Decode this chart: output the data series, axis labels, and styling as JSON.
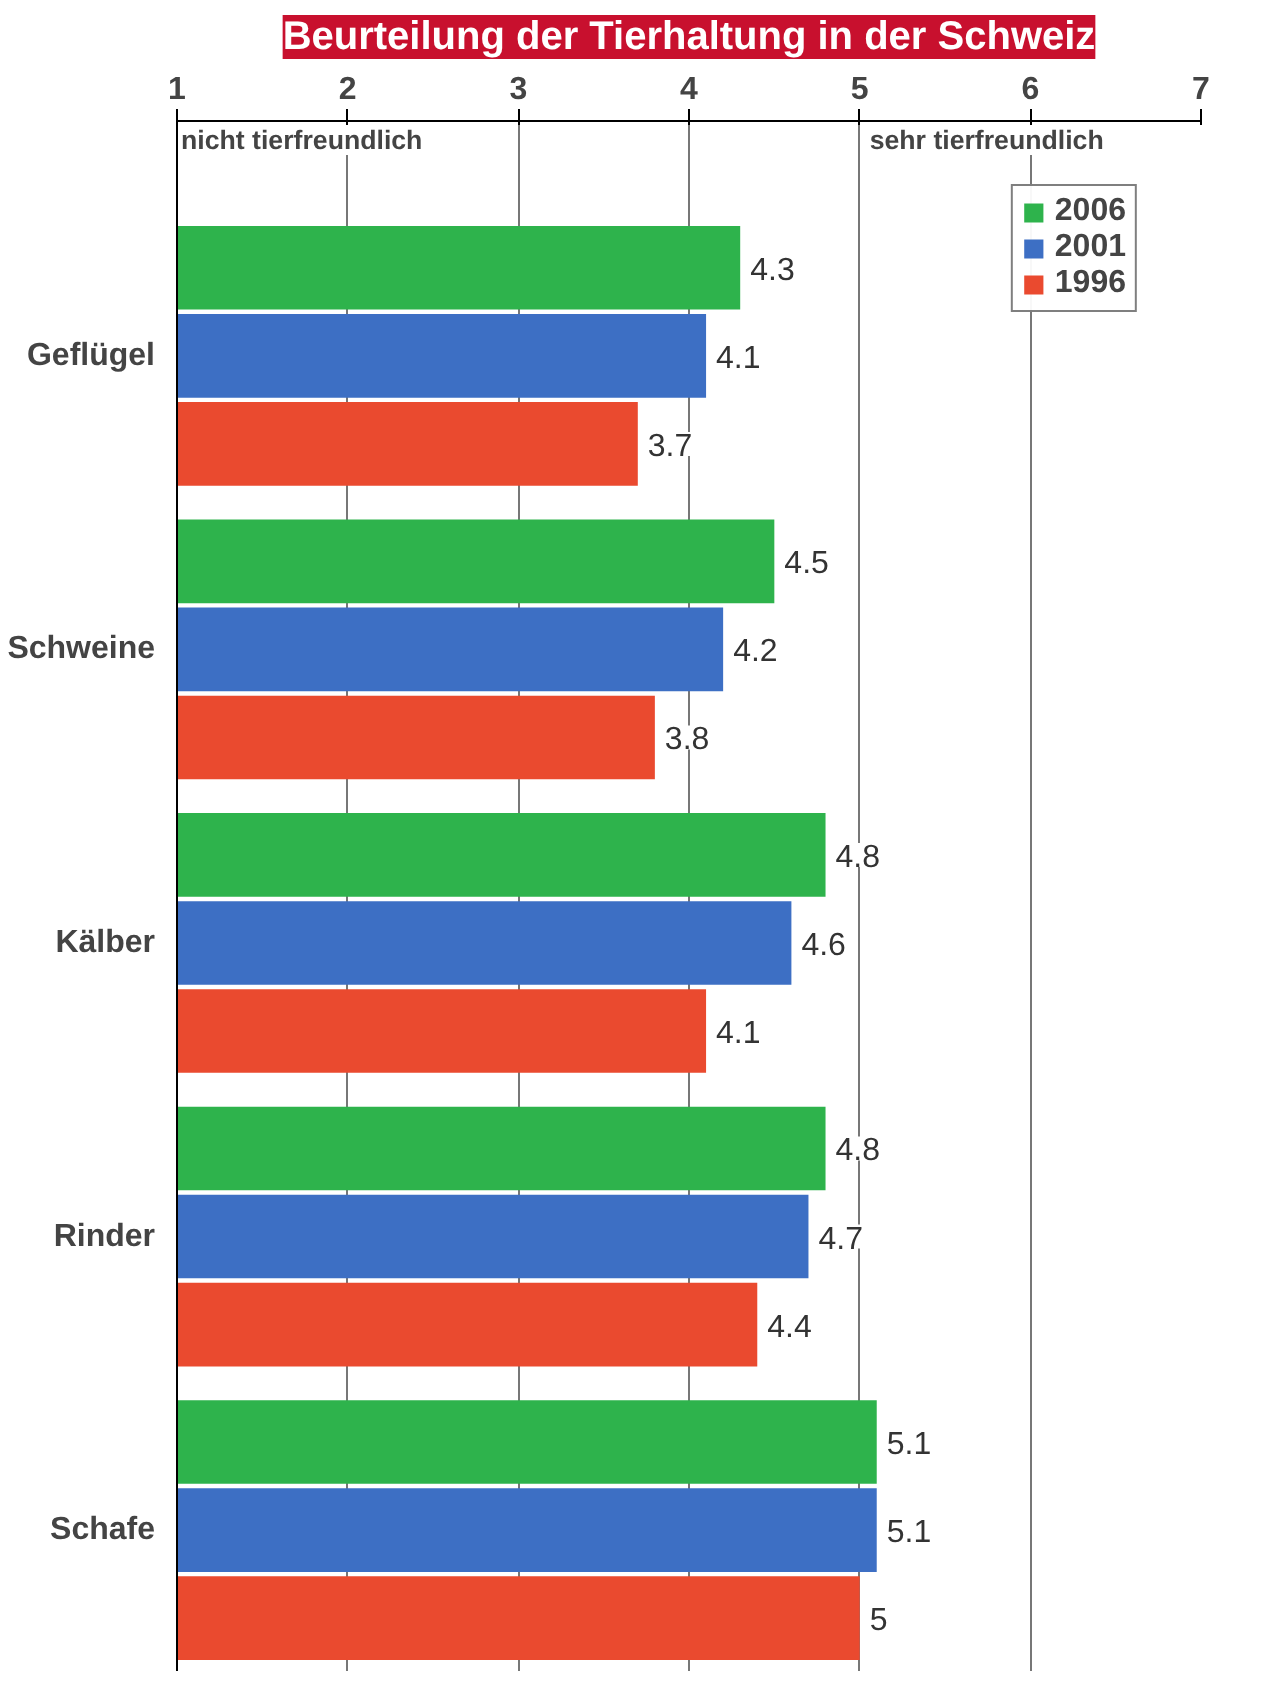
{
  "chart_data": {
    "type": "bar",
    "orientation": "horizontal",
    "title": "Beurteilung der Tierhaltung in der Schweiz",
    "categories": [
      "Geflügel",
      "Schweine",
      "Kälber",
      "Rinder",
      "Schafe"
    ],
    "series": [
      {
        "name": "2006",
        "color": "#2eb34c",
        "values": [
          4.3,
          4.5,
          4.8,
          4.8,
          5.1
        ]
      },
      {
        "name": "2001",
        "color": "#3d6fc4",
        "values": [
          4.1,
          4.2,
          4.6,
          4.7,
          5.1
        ]
      },
      {
        "name": "1996",
        "color": "#ea4a2f",
        "values": [
          3.7,
          3.8,
          4.1,
          4.4,
          5
        ]
      }
    ],
    "xlim": [
      1,
      7
    ],
    "xticks": [
      1,
      2,
      3,
      4,
      5,
      6,
      7
    ],
    "annotations": [
      "nicht tierfreundlich",
      "sehr tierfreundlich"
    ],
    "grid": "x",
    "legend": "top right",
    "data_labels": true
  }
}
